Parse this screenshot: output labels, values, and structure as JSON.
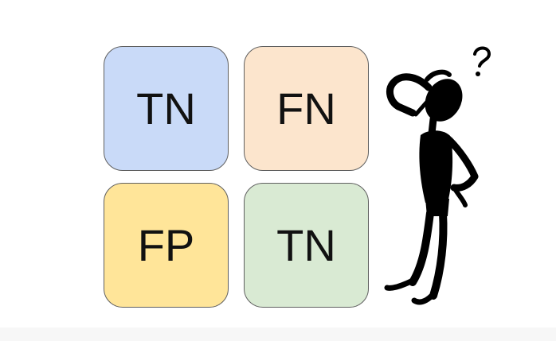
{
  "tiles": [
    {
      "label": "TN",
      "color": "#c9daf8"
    },
    {
      "label": "FN",
      "color": "#fce5cd"
    },
    {
      "label": "FP",
      "color": "#ffe599"
    },
    {
      "label": "TN",
      "color": "#d9ead3"
    }
  ],
  "figure": {
    "icon": "confused-person-icon",
    "mark": "question-mark-icon"
  }
}
